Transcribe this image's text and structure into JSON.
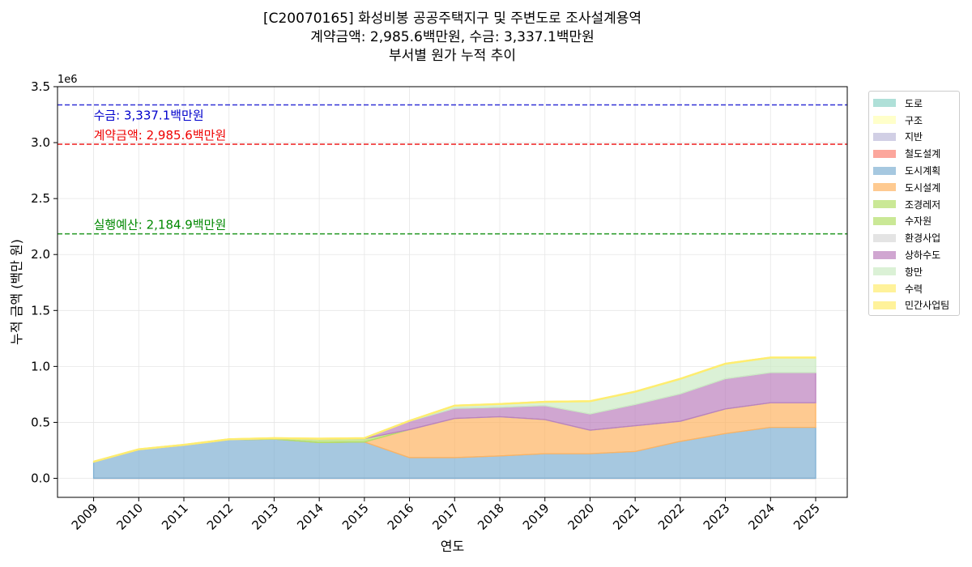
{
  "title": {
    "line1": "[C20070165] 화성비봉 공공주택지구 및 주변도로 조사설계용역",
    "line2": "계약금액: 2,985.6백만원, 수금: 3,337.1백만원",
    "line3": "부서별 원가 누적 추이"
  },
  "chart_data": {
    "type": "area",
    "stacked": true,
    "xlabel": "연도",
    "ylabel": "누적 금액 (백만 원)",
    "y_offset_label": "1e6",
    "ylim": [
      -170000,
      3500000
    ],
    "y_ticks": [
      0,
      500000,
      1000000,
      1500000,
      2000000,
      2500000,
      3000000,
      3500000
    ],
    "y_tick_labels": [
      "0.0",
      "0.5",
      "1.0",
      "1.5",
      "2.0",
      "2.5",
      "3.0",
      "3.5"
    ],
    "grid": true,
    "legend_position": "outside-right",
    "x": [
      "2009",
      "2010",
      "2011",
      "2012",
      "2013",
      "2014",
      "2015",
      "2016",
      "2017",
      "2018",
      "2019",
      "2020",
      "2021",
      "2022",
      "2023",
      "2024",
      "2025"
    ],
    "series": [
      {
        "name": "도로",
        "color": "#8dd3c7",
        "values": [
          0,
          0,
          0,
          0,
          0,
          0,
          0,
          0,
          0,
          0,
          0,
          0,
          0,
          0,
          0,
          0,
          0
        ]
      },
      {
        "name": "구조",
        "color": "#ffffb3",
        "values": [
          0,
          0,
          0,
          0,
          0,
          0,
          0,
          0,
          0,
          0,
          0,
          0,
          0,
          0,
          0,
          0,
          0
        ]
      },
      {
        "name": "지반",
        "color": "#bebada",
        "values": [
          0,
          0,
          0,
          0,
          0,
          0,
          0,
          0,
          0,
          0,
          0,
          0,
          0,
          0,
          0,
          0,
          0
        ]
      },
      {
        "name": "철도설계",
        "color": "#fb8072",
        "values": [
          0,
          0,
          0,
          0,
          0,
          0,
          0,
          0,
          0,
          0,
          0,
          0,
          0,
          0,
          0,
          0,
          0
        ]
      },
      {
        "name": "도시계획",
        "color": "#80b1d3",
        "values": [
          145000,
          255000,
          295000,
          345000,
          350000,
          320000,
          325000,
          185000,
          185000,
          200000,
          220000,
          220000,
          240000,
          330000,
          400000,
          455000,
          455000
        ]
      },
      {
        "name": "도시설계",
        "color": "#fdb462",
        "values": [
          0,
          0,
          0,
          0,
          0,
          0,
          0,
          250000,
          350000,
          350000,
          305000,
          210000,
          230000,
          180000,
          220000,
          220000,
          220000
        ]
      },
      {
        "name": "조경레저",
        "color": "#b3de69",
        "values": [
          0,
          0,
          0,
          0,
          0,
          0,
          0,
          0,
          0,
          0,
          0,
          0,
          0,
          0,
          0,
          0,
          0
        ]
      },
      {
        "name": "수자원",
        "color": "#b3de69",
        "values": [
          0,
          0,
          0,
          0,
          5000,
          30000,
          30000,
          0,
          0,
          0,
          0,
          0,
          0,
          0,
          0,
          0,
          0
        ]
      },
      {
        "name": "환경사업",
        "color": "#d9d9d9",
        "values": [
          0,
          0,
          0,
          0,
          0,
          0,
          0,
          0,
          0,
          0,
          0,
          0,
          0,
          0,
          0,
          0,
          0
        ]
      },
      {
        "name": "상하수도",
        "color": "#bc80bd",
        "values": [
          0,
          0,
          0,
          0,
          0,
          0,
          0,
          75000,
          90000,
          85000,
          125000,
          145000,
          190000,
          245000,
          270000,
          270000,
          270000
        ]
      },
      {
        "name": "항만",
        "color": "#ccebc5",
        "values": [
          0,
          0,
          0,
          0,
          0,
          0,
          0,
          0,
          20000,
          25000,
          30000,
          110000,
          110000,
          130000,
          130000,
          130000,
          130000
        ]
      },
      {
        "name": "수력",
        "color": "#ffed6f",
        "values": [
          8000,
          8000,
          8000,
          8000,
          8000,
          8000,
          8000,
          8000,
          8000,
          8000,
          8000,
          8000,
          8000,
          8000,
          8000,
          8000,
          8000
        ]
      },
      {
        "name": "민간사업팀",
        "color": "#ffed6f",
        "values": [
          0,
          0,
          0,
          0,
          0,
          0,
          0,
          0,
          0,
          0,
          0,
          0,
          0,
          0,
          0,
          0,
          0
        ]
      }
    ],
    "reference_lines": [
      {
        "label": "수금: 3,337.1백만원",
        "value": 3337100,
        "color": "#0000cc"
      },
      {
        "label": "계약금액: 2,985.6백만원",
        "value": 2985600,
        "color": "#ee0000"
      },
      {
        "label": "실행예산: 2,184.9백만원",
        "value": 2184900,
        "color": "#008800"
      }
    ]
  }
}
